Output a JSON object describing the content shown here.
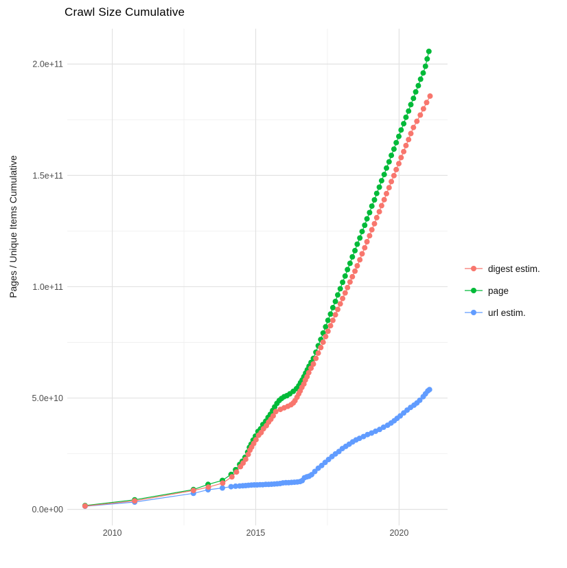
{
  "header": {
    "title": "Crawl Size Cumulative"
  },
  "axes": {
    "y_label": "Pages / Unique Items Cumulative",
    "y_ticks": [
      {
        "value_billions": 0,
        "label": "0.0e+00"
      },
      {
        "value_billions": 50,
        "label": "5.0e+10"
      },
      {
        "value_billions": 100,
        "label": "1.0e+11"
      },
      {
        "value_billions": 150,
        "label": "1.5e+11"
      },
      {
        "value_billions": 200,
        "label": "2.0e+11"
      }
    ],
    "y_minor_billions": [
      25,
      75,
      125,
      175
    ],
    "x_ticks": [
      {
        "value_year": 2010,
        "label": "2010"
      },
      {
        "value_year": 2015,
        "label": "2015"
      },
      {
        "value_year": 2020,
        "label": "2020"
      }
    ],
    "x_minor_years": [
      2012.5,
      2017.5
    ]
  },
  "legend": {
    "position": "right",
    "items": [
      {
        "label": "digest estim.",
        "color": "#F8766D"
      },
      {
        "label": "page",
        "color": "#00BA38"
      },
      {
        "label": "url estim.",
        "color": "#619CFF"
      }
    ]
  },
  "colors": {
    "grid_major": "#E2E2E2",
    "grid_minor": "#F0F0F0",
    "tick_text": "#4D4D4D",
    "title_text": "#000000",
    "axis_title_text": "#1A1A1A"
  },
  "chart_data": {
    "type": "scatter",
    "mode": "line+points",
    "title": "Crawl Size Cumulative",
    "xlabel": "",
    "ylabel": "Pages / Unique Items Cumulative",
    "value_unit": "billions (1e9) of pages / unique items",
    "xlim": [
      2008.43,
      2021.69
    ],
    "ylim_billions": [
      -7.2,
      215.9
    ],
    "grid": "major+minor",
    "legend_position": "right",
    "x_tick_labels": [
      "2010",
      "2015",
      "2020"
    ],
    "y_tick_labels": [
      "0.0e+00",
      "5.0e+10",
      "1.0e+11",
      "1.5e+11",
      "2.0e+11"
    ],
    "draw_order": [
      1,
      2,
      0
    ],
    "series": [
      {
        "name": "digest estim.",
        "color": "#F8766D",
        "points_year_billions": [
          [
            2009.05,
            1.5
          ],
          [
            2010.78,
            3.8
          ],
          [
            2012.83,
            8.5
          ],
          [
            2013.35,
            10.0
          ],
          [
            2013.85,
            11.8
          ],
          [
            2014.17,
            14.6
          ],
          [
            2014.33,
            16.8
          ],
          [
            2014.47,
            19.2
          ],
          [
            2014.56,
            20.8
          ],
          [
            2014.65,
            22.5
          ],
          [
            2014.74,
            24.7
          ],
          [
            2014.8,
            26.6
          ],
          [
            2014.86,
            28.0
          ],
          [
            2014.93,
            29.6
          ],
          [
            2015.01,
            31.3
          ],
          [
            2015.1,
            33.3
          ],
          [
            2015.19,
            34.5
          ],
          [
            2015.27,
            36.2
          ],
          [
            2015.37,
            37.6
          ],
          [
            2015.45,
            39.2
          ],
          [
            2015.53,
            40.5
          ],
          [
            2015.61,
            42.0
          ],
          [
            2015.7,
            43.9
          ],
          [
            2015.86,
            44.9
          ],
          [
            2015.99,
            45.6
          ],
          [
            2016.12,
            46.3
          ],
          [
            2016.23,
            47.0
          ],
          [
            2016.31,
            47.8
          ],
          [
            2016.37,
            48.8
          ],
          [
            2016.44,
            50.4
          ],
          [
            2016.5,
            51.9
          ],
          [
            2016.55,
            53.2
          ],
          [
            2016.61,
            54.8
          ],
          [
            2016.68,
            56.3
          ],
          [
            2016.73,
            58.1
          ],
          [
            2016.79,
            59.6
          ],
          [
            2016.85,
            61.4
          ],
          [
            2016.93,
            63.4
          ],
          [
            2017.01,
            65.3
          ],
          [
            2017.1,
            67.8
          ],
          [
            2017.18,
            70.2
          ],
          [
            2017.27,
            72.7
          ],
          [
            2017.35,
            75.1
          ],
          [
            2017.44,
            77.6
          ],
          [
            2017.52,
            80.0
          ],
          [
            2017.61,
            82.5
          ],
          [
            2017.69,
            84.9
          ],
          [
            2017.78,
            87.4
          ],
          [
            2017.86,
            89.8
          ],
          [
            2017.95,
            92.3
          ],
          [
            2018.03,
            94.7
          ],
          [
            2018.12,
            97.2
          ],
          [
            2018.2,
            99.6
          ],
          [
            2018.29,
            102.1
          ],
          [
            2018.37,
            104.5
          ],
          [
            2018.46,
            107.0
          ],
          [
            2018.54,
            109.4
          ],
          [
            2018.63,
            112.1
          ],
          [
            2018.71,
            114.8
          ],
          [
            2018.8,
            117.5
          ],
          [
            2018.88,
            120.2
          ],
          [
            2018.97,
            122.9
          ],
          [
            2019.05,
            125.6
          ],
          [
            2019.14,
            128.3
          ],
          [
            2019.22,
            131.0
          ],
          [
            2019.31,
            133.7
          ],
          [
            2019.39,
            136.4
          ],
          [
            2019.48,
            139.1
          ],
          [
            2019.56,
            141.8
          ],
          [
            2019.65,
            144.5
          ],
          [
            2019.73,
            147.2
          ],
          [
            2019.82,
            149.9
          ],
          [
            2019.9,
            152.6
          ],
          [
            2019.99,
            155.3
          ],
          [
            2020.07,
            158.0
          ],
          [
            2020.16,
            160.7
          ],
          [
            2020.24,
            163.4
          ],
          [
            2020.33,
            166.1
          ],
          [
            2020.41,
            168.8
          ],
          [
            2020.5,
            171.5
          ],
          [
            2020.62,
            174.3
          ],
          [
            2020.74,
            177.1
          ],
          [
            2020.85,
            179.9
          ],
          [
            2020.96,
            182.7
          ],
          [
            2021.08,
            185.6
          ]
        ]
      },
      {
        "name": "page",
        "color": "#00BA38",
        "points_year_billions": [
          [
            2009.05,
            1.7
          ],
          [
            2010.78,
            4.3
          ],
          [
            2012.83,
            8.9
          ],
          [
            2013.34,
            11.2
          ],
          [
            2013.84,
            13.0
          ],
          [
            2014.14,
            15.7
          ],
          [
            2014.3,
            17.8
          ],
          [
            2014.44,
            20.2
          ],
          [
            2014.53,
            21.6
          ],
          [
            2014.63,
            23.4
          ],
          [
            2014.72,
            25.7
          ],
          [
            2014.78,
            27.8
          ],
          [
            2014.84,
            29.3
          ],
          [
            2014.91,
            31.1
          ],
          [
            2014.99,
            32.9
          ],
          [
            2015.08,
            35.0
          ],
          [
            2015.17,
            36.2
          ],
          [
            2015.25,
            38.1
          ],
          [
            2015.35,
            39.6
          ],
          [
            2015.43,
            41.3
          ],
          [
            2015.51,
            42.7
          ],
          [
            2015.59,
            44.4
          ],
          [
            2015.66,
            46.0
          ],
          [
            2015.74,
            47.6
          ],
          [
            2015.82,
            48.9
          ],
          [
            2015.9,
            49.8
          ],
          [
            2015.99,
            50.6
          ],
          [
            2016.09,
            51.1
          ],
          [
            2016.19,
            51.9
          ],
          [
            2016.31,
            53.0
          ],
          [
            2016.42,
            54.2
          ],
          [
            2016.5,
            55.5
          ],
          [
            2016.56,
            56.9
          ],
          [
            2016.62,
            58.1
          ],
          [
            2016.68,
            59.6
          ],
          [
            2016.74,
            61.2
          ],
          [
            2016.8,
            62.7
          ],
          [
            2016.86,
            64.3
          ],
          [
            2016.93,
            66.0
          ],
          [
            2017.01,
            67.8
          ],
          [
            2017.1,
            70.6
          ],
          [
            2017.18,
            73.5
          ],
          [
            2017.27,
            76.3
          ],
          [
            2017.35,
            79.2
          ],
          [
            2017.44,
            82.0
          ],
          [
            2017.52,
            84.9
          ],
          [
            2017.61,
            87.7
          ],
          [
            2017.69,
            90.6
          ],
          [
            2017.78,
            93.4
          ],
          [
            2017.86,
            96.3
          ],
          [
            2017.95,
            99.1
          ],
          [
            2018.03,
            102.0
          ],
          [
            2018.12,
            104.8
          ],
          [
            2018.2,
            107.7
          ],
          [
            2018.29,
            110.5
          ],
          [
            2018.37,
            113.4
          ],
          [
            2018.46,
            116.2
          ],
          [
            2018.54,
            119.1
          ],
          [
            2018.63,
            121.9
          ],
          [
            2018.71,
            124.8
          ],
          [
            2018.8,
            127.6
          ],
          [
            2018.88,
            130.5
          ],
          [
            2018.97,
            133.3
          ],
          [
            2019.05,
            136.2
          ],
          [
            2019.14,
            139.0
          ],
          [
            2019.22,
            141.9
          ],
          [
            2019.31,
            144.7
          ],
          [
            2019.39,
            147.6
          ],
          [
            2019.48,
            150.4
          ],
          [
            2019.56,
            153.3
          ],
          [
            2019.65,
            156.1
          ],
          [
            2019.73,
            159.0
          ],
          [
            2019.82,
            161.8
          ],
          [
            2019.9,
            164.7
          ],
          [
            2019.99,
            167.5
          ],
          [
            2020.07,
            170.4
          ],
          [
            2020.16,
            173.2
          ],
          [
            2020.24,
            176.1
          ],
          [
            2020.33,
            178.9
          ],
          [
            2020.41,
            181.8
          ],
          [
            2020.5,
            184.6
          ],
          [
            2020.58,
            187.5
          ],
          [
            2020.67,
            190.3
          ],
          [
            2020.75,
            193.2
          ],
          [
            2020.84,
            196.0
          ],
          [
            2020.92,
            199.0
          ],
          [
            2020.98,
            202.3
          ],
          [
            2021.04,
            205.7
          ]
        ]
      },
      {
        "name": "url estim.",
        "color": "#619CFF",
        "points_year_billions": [
          [
            2009.05,
            1.4
          ],
          [
            2010.78,
            3.3
          ],
          [
            2012.83,
            7.2
          ],
          [
            2013.34,
            8.8
          ],
          [
            2013.84,
            9.6
          ],
          [
            2014.14,
            10.2
          ],
          [
            2014.3,
            10.4
          ],
          [
            2014.44,
            10.5
          ],
          [
            2014.55,
            10.6
          ],
          [
            2014.65,
            10.7
          ],
          [
            2014.75,
            10.8
          ],
          [
            2014.85,
            10.9
          ],
          [
            2014.95,
            11.0
          ],
          [
            2015.05,
            11.0
          ],
          [
            2015.15,
            11.1
          ],
          [
            2015.25,
            11.1
          ],
          [
            2015.35,
            11.2
          ],
          [
            2015.45,
            11.2
          ],
          [
            2015.55,
            11.3
          ],
          [
            2015.65,
            11.4
          ],
          [
            2015.75,
            11.5
          ],
          [
            2015.85,
            11.6
          ],
          [
            2015.95,
            11.9
          ],
          [
            2016.05,
            12.0
          ],
          [
            2016.15,
            12.0
          ],
          [
            2016.25,
            12.1
          ],
          [
            2016.35,
            12.2
          ],
          [
            2016.45,
            12.3
          ],
          [
            2016.55,
            12.5
          ],
          [
            2016.62,
            12.9
          ],
          [
            2016.7,
            14.2
          ],
          [
            2016.78,
            14.6
          ],
          [
            2016.86,
            14.9
          ],
          [
            2016.95,
            15.6
          ],
          [
            2017.06,
            17.0
          ],
          [
            2017.18,
            18.5
          ],
          [
            2017.3,
            19.7
          ],
          [
            2017.42,
            21.1
          ],
          [
            2017.54,
            22.4
          ],
          [
            2017.66,
            23.7
          ],
          [
            2017.78,
            24.9
          ],
          [
            2017.9,
            26.0
          ],
          [
            2018.02,
            27.3
          ],
          [
            2018.14,
            28.3
          ],
          [
            2018.26,
            29.3
          ],
          [
            2018.38,
            30.3
          ],
          [
            2018.5,
            31.2
          ],
          [
            2018.62,
            31.9
          ],
          [
            2018.76,
            32.7
          ],
          [
            2018.9,
            33.6
          ],
          [
            2019.04,
            34.3
          ],
          [
            2019.18,
            35.1
          ],
          [
            2019.32,
            35.9
          ],
          [
            2019.46,
            36.9
          ],
          [
            2019.6,
            37.8
          ],
          [
            2019.72,
            38.8
          ],
          [
            2019.83,
            39.8
          ],
          [
            2019.93,
            40.9
          ],
          [
            2020.04,
            42.0
          ],
          [
            2020.16,
            43.3
          ],
          [
            2020.28,
            44.6
          ],
          [
            2020.4,
            45.8
          ],
          [
            2020.52,
            46.8
          ],
          [
            2020.62,
            47.8
          ],
          [
            2020.72,
            49.0
          ],
          [
            2020.84,
            50.6
          ],
          [
            2020.92,
            51.9
          ],
          [
            2021.0,
            53.2
          ],
          [
            2021.06,
            53.8
          ]
        ]
      }
    ]
  }
}
